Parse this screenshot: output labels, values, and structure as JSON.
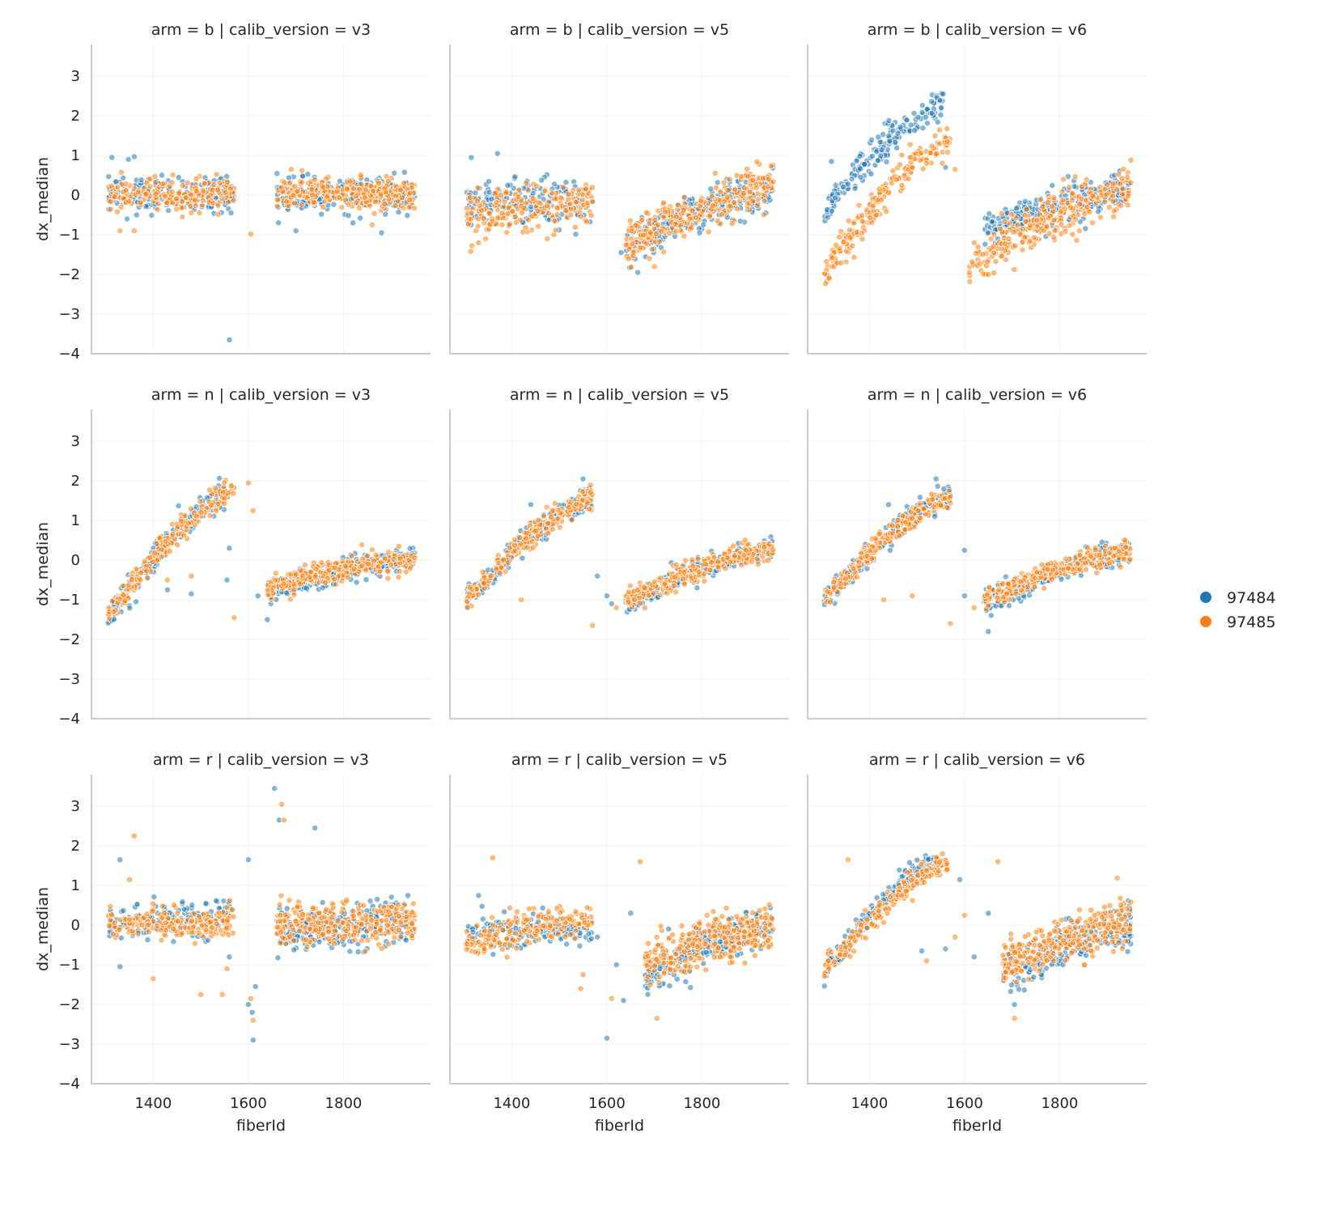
{
  "chart_data": {
    "type": "scatter",
    "layout": "facet-grid 3x3",
    "row_facet": "arm",
    "col_facet": "calib_version",
    "rows": [
      "b",
      "n",
      "r"
    ],
    "cols": [
      "v3",
      "v5",
      "v6"
    ],
    "title_template": "arm = {row} | calib_version = {col}",
    "xlabel": "fiberId",
    "ylabel": "dx_median",
    "xlim": [
      1270,
      1983
    ],
    "ylim": [
      -4,
      3.8
    ],
    "xticks": [
      1400,
      1600,
      1800
    ],
    "yticks": [
      -4,
      -3,
      -2,
      -1,
      0,
      1,
      2,
      3
    ],
    "ytick_labels": [
      "−4",
      "−3",
      "−2",
      "−1",
      "0",
      "1",
      "2",
      "3"
    ],
    "grid": true,
    "legend": {
      "placement": "right",
      "entries": [
        {
          "label": "97484",
          "color": "#1f77b4"
        },
        {
          "label": "97485",
          "color": "#ff7f0e"
        }
      ]
    },
    "marker_alpha": 0.55,
    "note": "Scatter points are approximated per panel as parametric clusters (x range, linear trend endpoints, spread, count) plus visible outliers, per series.",
    "panels": [
      {
        "row": "b",
        "col": "v3",
        "series": {
          "97484": {
            "clusters": [
              [
                1305,
                1570,
                0.0,
                0.05,
                0.22,
                170
              ],
              [
                1660,
                1950,
                0.0,
                0.0,
                0.2,
                260
              ]
            ],
            "outliers": [
              [
                1313,
                0.95
              ],
              [
                1348,
                0.9
              ],
              [
                1360,
                0.97
              ],
              [
                1345,
                -0.6
              ],
              [
                1365,
                -0.5
              ],
              [
                1700,
                -0.9
              ],
              [
                1880,
                -0.95
              ],
              [
                1560,
                -3.65
              ],
              [
                1820,
                -0.7
              ]
            ]
          },
          "97485": {
            "clusters": [
              [
                1305,
                1570,
                -0.05,
                0.05,
                0.2,
                200
              ],
              [
                1660,
                1950,
                0.05,
                0.05,
                0.18,
                300
              ]
            ],
            "outliers": [
              [
                1330,
                -0.9
              ],
              [
                1360,
                -0.9
              ],
              [
                1605,
                -0.98
              ],
              [
                1860,
                -0.75
              ],
              [
                1480,
                -0.45
              ],
              [
                1690,
                0.65
              ]
            ]
          }
        }
      },
      {
        "row": "b",
        "col": "v5",
        "series": {
          "97484": {
            "clusters": [
              [
                1305,
                1570,
                -0.2,
                -0.2,
                0.3,
                170
              ],
              [
                1640,
                1950,
                -1.3,
                0.15,
                0.25,
                230
              ]
            ],
            "outliers": [
              [
                1315,
                0.95
              ],
              [
                1370,
                1.05
              ],
              [
                1665,
                -1.95
              ],
              [
                1630,
                -1.45
              ]
            ]
          },
          "97485": {
            "clusters": [
              [
                1305,
                1570,
                -0.5,
                -0.2,
                0.28,
                200
              ],
              [
                1640,
                1950,
                -1.2,
                0.2,
                0.28,
                280
              ]
            ],
            "outliers": [
              [
                1330,
                -1.2
              ],
              [
                1345,
                -1.1
              ],
              [
                1700,
                -1.8
              ],
              [
                1690,
                -1.6
              ]
            ]
          }
        }
      },
      {
        "row": "b",
        "col": "v6",
        "series": {
          "97484": {
            "clusters": [
              [
                1305,
                1555,
                -0.4,
                2.3,
                0.22,
                180
              ],
              [
                1640,
                1950,
                -0.9,
                0.1,
                0.22,
                230
              ]
            ],
            "outliers": [
              [
                1320,
                0.85
              ],
              [
                1555,
                2.55
              ],
              [
                1560,
                0.7
              ]
            ]
          },
          "97485": {
            "clusters": [
              [
                1305,
                1570,
                -1.9,
                1.45,
                0.2,
                200
              ],
              [
                1610,
                1950,
                -1.8,
                0.25,
                0.3,
                280
              ]
            ],
            "outliers": [
              [
                1580,
                0.65
              ],
              [
                1610,
                -1.95
              ],
              [
                1650,
                -2.0
              ]
            ]
          }
        }
      },
      {
        "row": "n",
        "col": "v3",
        "series": {
          "97484": {
            "clusters": [
              [
                1305,
                1555,
                -1.5,
                1.7,
                0.18,
                180
              ],
              [
                1640,
                1950,
                -0.8,
                0.05,
                0.15,
                220
              ]
            ],
            "outliers": [
              [
                1430,
                -0.75
              ],
              [
                1480,
                -0.85
              ],
              [
                1640,
                -1.5
              ],
              [
                1620,
                -0.9
              ],
              [
                1555,
                -0.5
              ],
              [
                1560,
                0.3
              ]
            ]
          },
          "97485": {
            "clusters": [
              [
                1305,
                1570,
                -1.4,
                1.8,
                0.16,
                220
              ],
              [
                1640,
                1950,
                -0.7,
                0.05,
                0.14,
                280
              ]
            ],
            "outliers": [
              [
                1600,
                1.95
              ],
              [
                1610,
                1.25
              ],
              [
                1570,
                -1.45
              ],
              [
                1430,
                -0.5
              ],
              [
                1480,
                -0.4
              ]
            ]
          }
        }
      },
      {
        "row": "n",
        "col": "v5",
        "series": {
          "97484": {
            "clusters": [
              [
                1305,
                1570,
                -1.0,
                1.6,
                0.15,
                180
              ],
              [
                1640,
                1950,
                -1.1,
                0.3,
                0.15,
                220
              ]
            ],
            "outliers": [
              [
                1310,
                -0.6
              ],
              [
                1440,
                1.4
              ],
              [
                1550,
                2.05
              ],
              [
                1600,
                -0.9
              ],
              [
                1610,
                -1.1
              ],
              [
                1580,
                -0.4
              ]
            ]
          },
          "97485": {
            "clusters": [
              [
                1305,
                1570,
                -1.0,
                1.6,
                0.14,
                220
              ],
              [
                1640,
                1950,
                -1.0,
                0.3,
                0.13,
                280
              ]
            ],
            "outliers": [
              [
                1570,
                -1.65
              ],
              [
                1620,
                -1.2
              ],
              [
                1680,
                -1.2
              ],
              [
                1420,
                -1.0
              ]
            ]
          }
        }
      },
      {
        "row": "n",
        "col": "v6",
        "series": {
          "97484": {
            "clusters": [
              [
                1305,
                1570,
                -1.0,
                1.6,
                0.15,
                180
              ],
              [
                1640,
                1950,
                -1.1,
                0.25,
                0.15,
                220
              ]
            ],
            "outliers": [
              [
                1330,
                -0.6
              ],
              [
                1440,
                1.4
              ],
              [
                1540,
                2.05
              ],
              [
                1600,
                -0.9
              ],
              [
                1600,
                0.25
              ],
              [
                1650,
                -1.8
              ]
            ]
          },
          "97485": {
            "clusters": [
              [
                1305,
                1570,
                -1.0,
                1.6,
                0.14,
                220
              ],
              [
                1640,
                1950,
                -1.0,
                0.25,
                0.13,
                280
              ]
            ],
            "outliers": [
              [
                1570,
                -1.6
              ],
              [
                1620,
                -1.2
              ],
              [
                1430,
                -1.0
              ],
              [
                1490,
                -0.9
              ]
            ]
          }
        }
      },
      {
        "row": "r",
        "col": "v3",
        "series": {
          "97484": {
            "clusters": [
              [
                1305,
                1570,
                0.05,
                0.15,
                0.22,
                170
              ],
              [
                1660,
                1950,
                -0.1,
                0.05,
                0.28,
                260
              ]
            ],
            "outliers": [
              [
                1330,
                1.65
              ],
              [
                1330,
                -1.05
              ],
              [
                1600,
                1.65
              ],
              [
                1655,
                3.45
              ],
              [
                1665,
                2.65
              ],
              [
                1740,
                2.45
              ],
              [
                1610,
                -2.9
              ],
              [
                1615,
                -1.55
              ],
              [
                1560,
                -0.8
              ],
              [
                1600,
                -2.0
              ],
              [
                1608,
                -2.2
              ]
            ]
          },
          "97485": {
            "clusters": [
              [
                1305,
                1570,
                0.0,
                0.1,
                0.2,
                200
              ],
              [
                1660,
                1950,
                0.0,
                0.05,
                0.25,
                300
              ]
            ],
            "outliers": [
              [
                1360,
                2.25
              ],
              [
                1350,
                1.15
              ],
              [
                1400,
                -1.35
              ],
              [
                1500,
                -1.75
              ],
              [
                1545,
                -1.75
              ],
              [
                1555,
                -1.1
              ],
              [
                1670,
                3.05
              ],
              [
                1675,
                2.65
              ],
              [
                1610,
                -2.4
              ],
              [
                1605,
                -1.85
              ]
            ]
          }
        }
      },
      {
        "row": "r",
        "col": "v5",
        "series": {
          "97484": {
            "clusters": [
              [
                1305,
                1570,
                -0.2,
                -0.1,
                0.2,
                170
              ],
              [
                1680,
                1950,
                -1.3,
                0.0,
                0.25,
                240
              ]
            ],
            "outliers": [
              [
                1330,
                0.75
              ],
              [
                1600,
                -2.85
              ],
              [
                1635,
                -1.9
              ],
              [
                1620,
                -1.0
              ],
              [
                1650,
                0.3
              ],
              [
                1580,
                -0.3
              ]
            ]
          },
          "97485": {
            "clusters": [
              [
                1305,
                1570,
                -0.5,
                0.2,
                0.2,
                200
              ],
              [
                1680,
                1950,
                -1.0,
                0.0,
                0.3,
                300
              ]
            ],
            "outliers": [
              [
                1360,
                1.7
              ],
              [
                1670,
                1.6
              ],
              [
                1545,
                -1.6
              ],
              [
                1550,
                -1.25
              ],
              [
                1610,
                -1.85
              ],
              [
                1705,
                -2.35
              ]
            ]
          }
        }
      },
      {
        "row": "r",
        "col": "v6",
        "series": {
          "97484": {
            "clusters": [
              [
                1305,
                1550,
                -1.2,
                1.7,
                0.15,
                170
              ],
              [
                1680,
                1950,
                -1.3,
                0.05,
                0.25,
                240
              ]
            ],
            "outliers": [
              [
                1590,
                1.15
              ],
              [
                1560,
                -0.6
              ],
              [
                1510,
                -0.65
              ],
              [
                1620,
                -0.8
              ],
              [
                1650,
                0.3
              ],
              [
                1705,
                -2.0
              ]
            ]
          },
          "97485": {
            "clusters": [
              [
                1305,
                1565,
                -1.2,
                1.6,
                0.15,
                200
              ],
              [
                1680,
                1950,
                -1.0,
                0.05,
                0.28,
                300
              ]
            ],
            "outliers": [
              [
                1355,
                1.65
              ],
              [
                1670,
                1.6
              ],
              [
                1520,
                -0.9
              ],
              [
                1600,
                0.25
              ],
              [
                1705,
                -2.35
              ],
              [
                1580,
                -0.3
              ]
            ]
          }
        }
      }
    ]
  }
}
